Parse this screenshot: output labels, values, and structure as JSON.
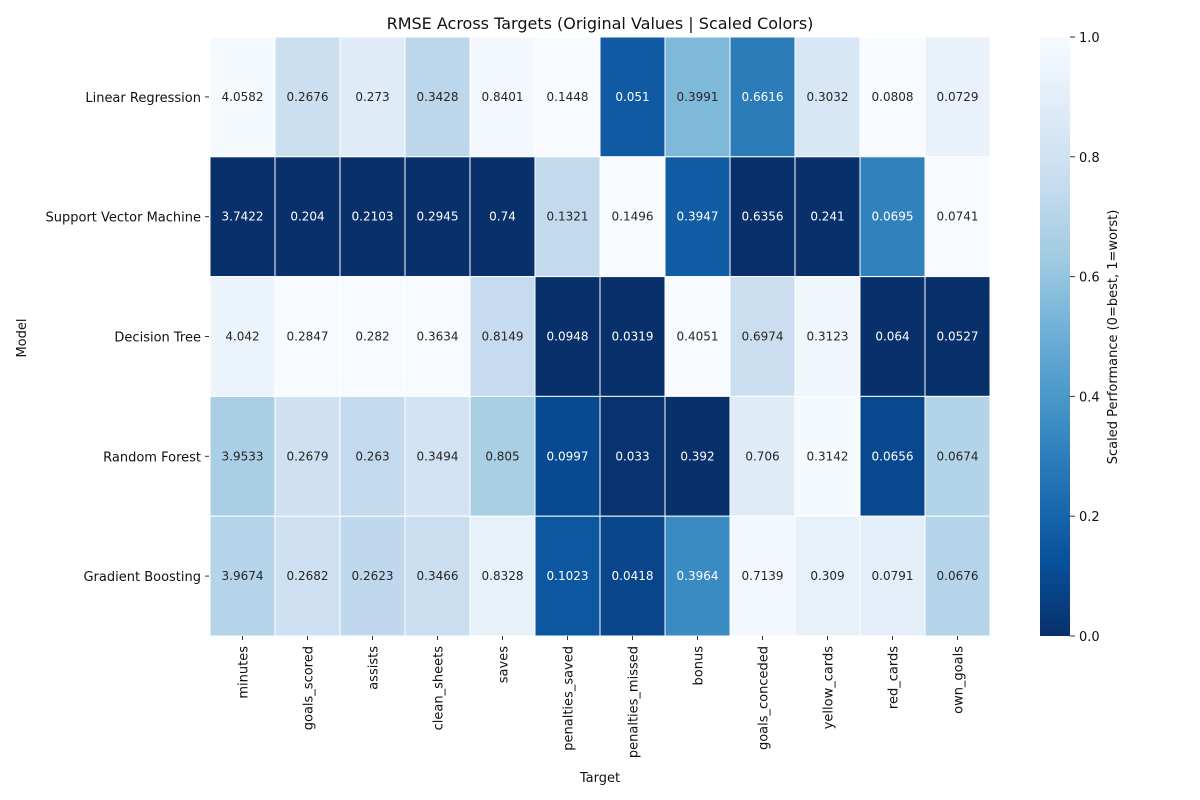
{
  "chart_data": {
    "type": "heatmap",
    "title": "RMSE Across Targets (Original Values | Scaled Colors)",
    "xlabel": "Target",
    "ylabel": "Model",
    "colorbar_label": "Scaled Performance (0=best, 1=worst)",
    "colorbar_range": [
      0,
      1
    ],
    "colorbar_ticks": [
      "0.0",
      "0.2",
      "0.4",
      "0.6",
      "0.8",
      "1.0"
    ],
    "colormap": "Blues_r",
    "columns": [
      "minutes",
      "goals_scored",
      "assists",
      "clean_sheets",
      "saves",
      "penalties_saved",
      "penalties_missed",
      "bonus",
      "goals_conceded",
      "yellow_cards",
      "red_cards",
      "own_goals"
    ],
    "rows": [
      {
        "model": "Linear Regression",
        "values": [
          "4.0582",
          "0.2676",
          "0.273",
          "0.3428",
          "0.8401",
          "0.1448",
          "0.051",
          "0.3991",
          "0.6616",
          "0.3032",
          "0.0808",
          "0.0729"
        ],
        "scaled": [
          0.99,
          0.78,
          0.88,
          0.72,
          0.98,
          1.0,
          0.16,
          0.55,
          0.29,
          0.84,
          1.0,
          0.93
        ]
      },
      {
        "model": "Support Vector Machine",
        "values": [
          "3.7422",
          "0.204",
          "0.2103",
          "0.2945",
          "0.74",
          "0.1321",
          "0.1496",
          "0.3947",
          "0.6356",
          "0.241",
          "0.0695",
          "0.0741"
        ],
        "scaled": [
          0.0,
          0.0,
          0.0,
          0.0,
          0.0,
          0.74,
          1.0,
          0.17,
          0.0,
          0.0,
          0.31,
          1.0
        ]
      },
      {
        "model": "Decision Tree",
        "values": [
          "4.042",
          "0.2847",
          "0.282",
          "0.3634",
          "0.8149",
          "0.0948",
          "0.0319",
          "0.4051",
          "0.6974",
          "0.3123",
          "0.064",
          "0.0527"
        ],
        "scaled": [
          0.94,
          1.0,
          1.0,
          1.0,
          0.75,
          0.0,
          0.0,
          1.0,
          0.77,
          0.96,
          0.0,
          0.0
        ]
      },
      {
        "model": "Random Forest",
        "values": [
          "3.9533",
          "0.2679",
          "0.263",
          "0.3494",
          "0.805",
          "0.0997",
          "0.033",
          "0.392",
          "0.706",
          "0.3142",
          "0.0656",
          "0.0674"
        ],
        "scaled": [
          0.66,
          0.79,
          0.74,
          0.81,
          0.66,
          0.1,
          0.01,
          0.0,
          0.88,
          0.99,
          0.09,
          0.69
        ]
      },
      {
        "model": "Gradient Boosting",
        "values": [
          "3.9674",
          "0.2682",
          "0.2623",
          "0.3466",
          "0.8328",
          "0.1023",
          "0.0418",
          "0.3964",
          "0.7139",
          "0.309",
          "0.0791",
          "0.0676"
        ],
        "scaled": [
          0.7,
          0.79,
          0.73,
          0.77,
          0.92,
          0.15,
          0.08,
          0.35,
          0.98,
          0.92,
          0.9,
          0.7
        ]
      }
    ]
  }
}
